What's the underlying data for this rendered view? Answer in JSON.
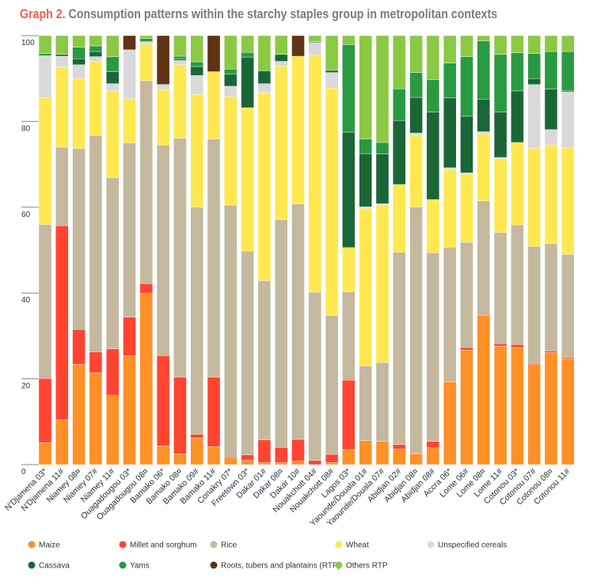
{
  "title": {
    "lead": "Graph 2.",
    "text": "Consumption patterns within the starchy staples group in metropolitan contexts"
  },
  "chart_data": {
    "type": "bar",
    "stacked": true,
    "title": "Graph 2. Consumption patterns within the starchy staples group in metropolitan contexts",
    "xlabel": "",
    "ylabel": "",
    "ylim": [
      0,
      100
    ],
    "yticks": [
      0,
      20,
      40,
      60,
      80,
      100
    ],
    "legend_position": "bottom",
    "categories": [
      "N'Djamena 03*",
      "N'Djamena 11#",
      "Niamey 08¤",
      "Niamey 07#",
      "Niamey 11#",
      "Ouagadougou 03*",
      "Ouagadougou 08¤",
      "Bamako 06*",
      "Bamako 08¤",
      "Bamako 09#",
      "Bamako 11#",
      "Conakry 07*",
      "Freetown 03*",
      "Dakar 01#",
      "Dakar 08¤",
      "Dakar 10#",
      "Nouakchott 04#",
      "Nouakchott 08#",
      "Lagos 03*",
      "Yaounde/Douala 01#",
      "Yaounde/Douala 07#",
      "Abidjan 02#",
      "Abidjan 08¤",
      "Abidjan 08#",
      "Accra 06*",
      "Lome 06#",
      "Lome 08¤",
      "Lome 11#",
      "Cotonou 03*",
      "Cotonou 07#",
      "Cotonou 08¤",
      "Cotonou 11#"
    ],
    "series": [
      {
        "name": "Maize",
        "color": "#ff9027",
        "values": [
          5.1,
          10.5,
          23.4,
          21.4,
          16.1,
          25.4,
          39.9,
          4.4,
          2.5,
          6.2,
          4.2,
          1.5,
          1,
          0.5,
          0.5,
          0.8,
          0,
          0.5,
          3.5,
          5.6,
          5.4,
          3.6,
          2.5,
          3.9,
          19.3,
          26.7,
          34.8,
          27.6,
          27.3,
          23.3,
          26.1,
          24.7
        ]
      },
      {
        "name": "Millet and sorghum",
        "color": "#ff4531",
        "values": [
          15,
          45.2,
          8.1,
          4.9,
          10.9,
          9,
          2.3,
          21,
          17.9,
          0.9,
          16.2,
          0.3,
          1.3,
          5.3,
          3.5,
          5.1,
          1,
          1.9,
          16.2,
          0,
          0,
          1.1,
          0.2,
          1.5,
          0,
          0.6,
          0.2,
          0.6,
          0.7,
          0.3,
          0.4,
          0.3
        ]
      },
      {
        "name": "Rice",
        "color": "#c4b89e",
        "values": [
          35.9,
          18.3,
          42.2,
          50.4,
          39.9,
          40.6,
          47.3,
          49.1,
          55.7,
          52.9,
          55.5,
          58.7,
          47.5,
          37.1,
          53.1,
          54.9,
          39.2,
          32.4,
          20.6,
          17.4,
          18.4,
          44.8,
          57.3,
          44,
          31.4,
          24.5,
          26.5,
          25.9,
          27.9,
          27.3,
          25,
          24
        ]
      },
      {
        "name": "Wheat",
        "color": "#ffe84f",
        "values": [
          29.5,
          18.7,
          16.3,
          17.3,
          20.2,
          10.3,
          8.5,
          12.8,
          17.1,
          26.3,
          15.7,
          25.3,
          33.4,
          43.8,
          35.8,
          34.4,
          55.2,
          53,
          10.3,
          36.7,
          36.8,
          15.8,
          16.8,
          12.4,
          18.1,
          15.9,
          15.6,
          17.2,
          19.2,
          22.9,
          22.9,
          24.8
        ]
      },
      {
        "name": "Unspecified cereals",
        "color": "#d9d9db",
        "values": [
          9.8,
          2.5,
          3.2,
          1.1,
          1.7,
          11.4,
          0.6,
          1.3,
          1,
          4.4,
          0,
          2.4,
          0,
          2.1,
          1.1,
          0,
          3,
          3.6,
          0,
          0.4,
          0.2,
          0,
          0.5,
          0,
          0.4,
          0.3,
          0.5,
          0.3,
          0,
          14.8,
          3.7,
          13.1
        ]
      },
      {
        "name": "Cassava",
        "color": "#1b6637",
        "values": [
          0,
          0.4,
          1.4,
          1.2,
          2.8,
          0,
          0,
          0,
          0.3,
          2.1,
          0,
          2.8,
          11.8,
          3,
          1.6,
          0,
          0.2,
          0.5,
          26.9,
          12.4,
          11.6,
          14.9,
          8.3,
          20.4,
          16.3,
          13.2,
          7.6,
          10.6,
          12,
          1.4,
          9.4,
          0.3
        ]
      },
      {
        "name": "Yams",
        "color": "#299a42",
        "values": [
          0.5,
          0,
          2.7,
          1.3,
          3.5,
          0,
          0.7,
          0,
          0.7,
          1.1,
          0,
          1.2,
          1.1,
          0,
          0,
          0,
          0,
          0,
          20.4,
          3.4,
          2.7,
          7.4,
          5.8,
          7.5,
          8.1,
          13.9,
          13.6,
          13.4,
          8.9,
          5.8,
          8.8,
          9.1
        ]
      },
      {
        "name": "Roots, tubers and plantains (RTP)",
        "color": "#5f3415",
        "values": [
          0,
          0,
          0,
          0,
          0,
          3.3,
          0,
          11.4,
          0,
          0,
          8.4,
          0,
          0,
          0,
          0,
          4.8,
          0,
          0,
          0,
          0,
          0,
          0,
          0,
          0,
          0,
          0,
          0,
          0,
          0,
          0,
          0,
          0
        ]
      },
      {
        "name": "Others RTP",
        "color": "#8bc944",
        "values": [
          4.2,
          4.4,
          2.7,
          2.4,
          4.9,
          0,
          0.7,
          0,
          4.8,
          6.1,
          0,
          7.8,
          3.9,
          8.2,
          4.4,
          0,
          1.4,
          8.1,
          2.1,
          24.1,
          24.9,
          12.4,
          8.6,
          10.3,
          6.4,
          4.9,
          1.2,
          4.4,
          4,
          4.2,
          3.7,
          3.7
        ]
      }
    ]
  }
}
